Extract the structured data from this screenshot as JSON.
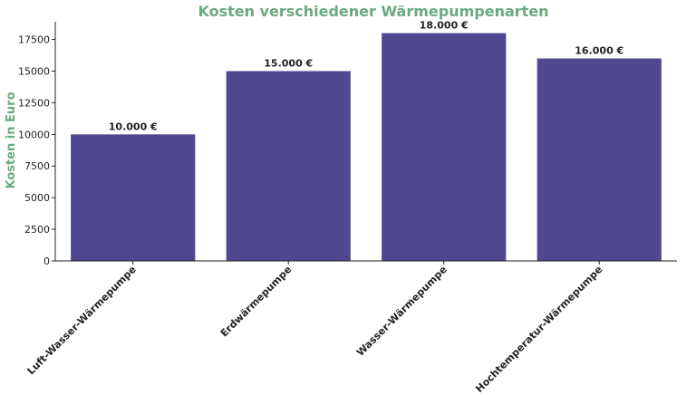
{
  "chart_data": {
    "type": "bar",
    "title": "Kosten verschiedener Wärmepumpenarten",
    "xlabel": "",
    "ylabel": "Kosten in Euro",
    "categories": [
      "Luft-Wasser-Wärmepumpe",
      "Erdwärmepumpe",
      "Wasser-Wärmepumpe",
      "Hochtemperatur-Wärmepumpe"
    ],
    "values": [
      10000,
      15000,
      18000,
      16000
    ],
    "data_labels": [
      "10.000 €",
      "15.000 €",
      "18.000 €",
      "16.000 €"
    ],
    "yticks": [
      0,
      2500,
      5000,
      7500,
      10000,
      12500,
      15000,
      17500
    ],
    "ylim": [
      0,
      18900
    ],
    "grid": false,
    "bar_color": "#50488e",
    "title_color": "#6aaa7f",
    "ylabel_color": "#6aaa7f"
  }
}
